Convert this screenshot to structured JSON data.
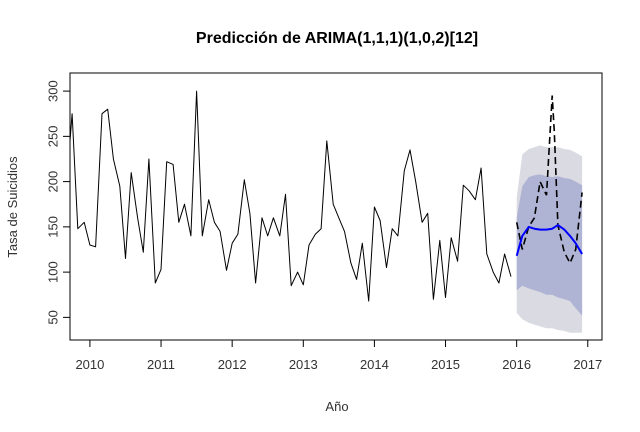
{
  "chart_data": {
    "type": "line",
    "title": "Predicción de ARIMA(1,1,1)(1,0,2)[12]",
    "xlabel": "Año",
    "ylabel": "Tasa de Suicidios",
    "xlim": [
      2009.72,
      2017.2
    ],
    "ylim": [
      25,
      320
    ],
    "x_ticks": [
      2010,
      2011,
      2012,
      2013,
      2014,
      2015,
      2016,
      2017
    ],
    "y_ticks": [
      50,
      100,
      150,
      200,
      250,
      300
    ],
    "grid": false,
    "legend": "none",
    "colors": {
      "observed": "#000000",
      "actual_dashed": "#000000",
      "forecast": "#0000ff",
      "band_80": "#b0b4d4",
      "band_95": "#dadae2"
    },
    "series": [
      {
        "role": "observed",
        "x": [
          2009.72,
          2009.75,
          2009.83,
          2009.92,
          2010.0,
          2010.08,
          2010.17,
          2010.25,
          2010.33,
          2010.42,
          2010.5,
          2010.58,
          2010.67,
          2010.75,
          2010.83,
          2010.92,
          2011.0,
          2011.08,
          2011.17,
          2011.25,
          2011.33,
          2011.42,
          2011.5,
          2011.58,
          2011.67,
          2011.75,
          2011.83,
          2011.92,
          2012.0,
          2012.08,
          2012.17,
          2012.25,
          2012.33,
          2012.42,
          2012.5,
          2012.58,
          2012.67,
          2012.75,
          2012.83,
          2012.92,
          2013.0,
          2013.08,
          2013.17,
          2013.25,
          2013.33,
          2013.42,
          2013.5,
          2013.58,
          2013.67,
          2013.75,
          2013.83,
          2013.92,
          2014.0,
          2014.08,
          2014.17,
          2014.25,
          2014.33,
          2014.42,
          2014.5,
          2014.58,
          2014.67,
          2014.75,
          2014.83,
          2014.92,
          2015.0,
          2015.08,
          2015.17,
          2015.25,
          2015.33,
          2015.42,
          2015.5,
          2015.58,
          2015.67,
          2015.75,
          2015.83,
          2015.92
        ],
        "values": [
          245,
          275,
          148,
          155,
          130,
          128,
          275,
          280,
          225,
          195,
          115,
          210,
          160,
          122,
          225,
          88,
          103,
          222,
          219,
          155,
          175,
          140,
          300,
          140,
          180,
          155,
          145,
          102,
          132,
          142,
          202,
          165,
          88,
          160,
          140,
          160,
          140,
          186,
          85,
          100,
          86,
          130,
          142,
          148,
          245,
          175,
          160,
          145,
          110,
          92,
          132,
          68,
          172,
          157,
          105,
          148,
          140,
          212,
          235,
          200,
          155,
          165,
          70,
          135,
          72,
          138,
          112,
          196,
          190,
          180,
          215,
          120,
          100,
          88,
          120,
          95
        ]
      },
      {
        "role": "actual_dashed",
        "x": [
          2016.0,
          2016.08,
          2016.17,
          2016.25,
          2016.33,
          2016.42,
          2016.5,
          2016.53,
          2016.58,
          2016.67,
          2016.75,
          2016.83,
          2016.92
        ],
        "values": [
          155,
          125,
          150,
          160,
          200,
          185,
          295,
          255,
          152,
          122,
          110,
          125,
          188
        ]
      },
      {
        "role": "forecast",
        "x": [
          2016.0,
          2016.08,
          2016.17,
          2016.25,
          2016.33,
          2016.42,
          2016.5,
          2016.58,
          2016.67,
          2016.75,
          2016.83,
          2016.92
        ],
        "values": [
          118,
          140,
          150,
          148,
          147,
          147,
          148,
          152,
          147,
          140,
          132,
          120
        ],
        "lo80": [
          80,
          85,
          82,
          80,
          78,
          75,
          75,
          72,
          70,
          68,
          60,
          52
        ],
        "hi80": [
          160,
          195,
          205,
          207,
          208,
          206,
          205,
          206,
          204,
          203,
          200,
          196
        ],
        "lo95": [
          55,
          48,
          44,
          42,
          40,
          38,
          38,
          36,
          35,
          33,
          33,
          33
        ],
        "hi95": [
          182,
          230,
          236,
          238,
          240,
          238,
          238,
          238,
          236,
          235,
          232,
          228
        ]
      }
    ]
  }
}
